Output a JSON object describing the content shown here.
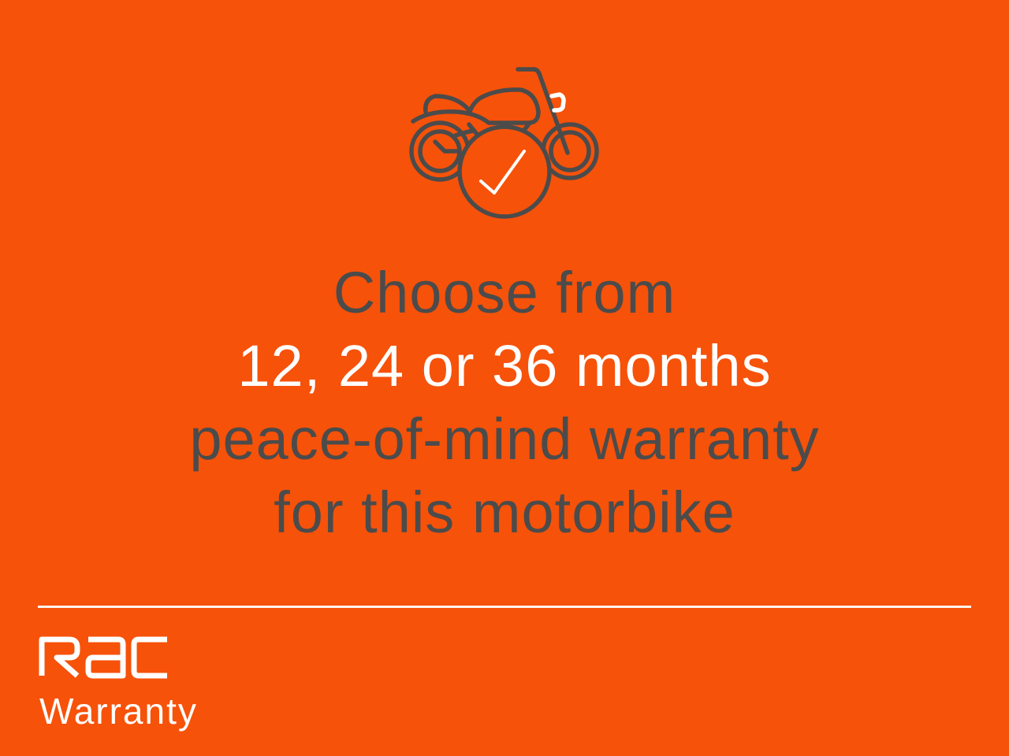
{
  "icon": {
    "name": "motorbike-check-icon",
    "stroke_color": "#4b4b4b",
    "check_color": "#ffffff"
  },
  "headline": {
    "lines": [
      "Choose from",
      "12, 24 or 36 months",
      "peace-of-mind warranty",
      "for this motorbike"
    ],
    "highlight_line": "12, 24 or 36 months"
  },
  "brand": {
    "logo_text": "RAC",
    "product": "Warranty"
  },
  "colors": {
    "background": "#F6520A",
    "text": "#4b4b4b",
    "highlight": "#ffffff"
  }
}
